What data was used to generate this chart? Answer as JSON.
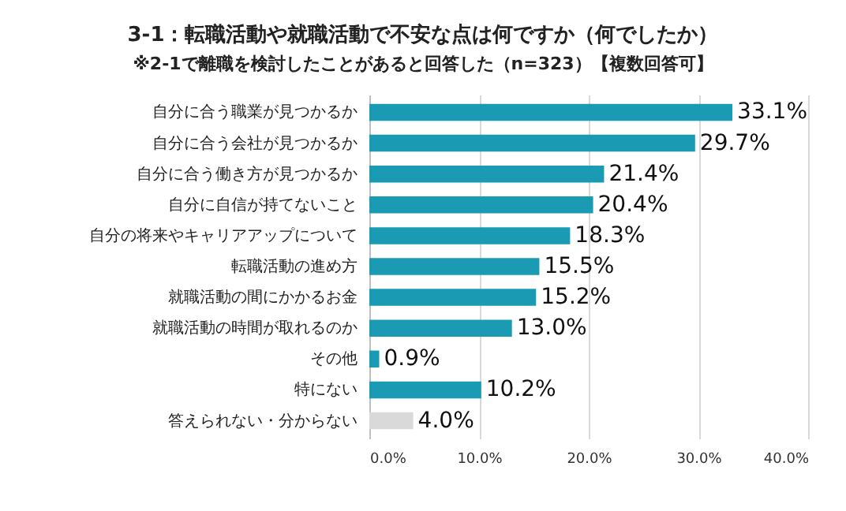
{
  "chart_data": {
    "type": "bar",
    "orientation": "horizontal",
    "title": "3-1：転職活動や就職活動で不安な点は何ですか（何でしたか）",
    "subtitle": "※2-1で離職を検討したことがあると回答した（n=323）【複数回答可】",
    "categories": [
      "自分に合う職業が見つかるか",
      "自分に合う会社が見つかるか",
      "自分に合う働き方が見つかるか",
      "自分に自信が持てないこと",
      "自分の将来やキャリアアップについて",
      "転職活動の進め方",
      "就職活動の間にかかるお金",
      "就職活動の時間が取れるのか",
      "その他",
      "特にない",
      "答えられない・分からない"
    ],
    "values": [
      33.1,
      29.7,
      21.4,
      20.4,
      18.3,
      15.5,
      15.2,
      13.0,
      0.9,
      10.2,
      4.0
    ],
    "value_labels": [
      "33.1%",
      "29.7%",
      "21.4%",
      "20.4%",
      "18.3%",
      "15.5%",
      "15.2%",
      "13.0%",
      "0.9%",
      "10.2%",
      "4.0%"
    ],
    "colors": [
      "#1a9bb3",
      "#1a9bb3",
      "#1a9bb3",
      "#1a9bb3",
      "#1a9bb3",
      "#1a9bb3",
      "#1a9bb3",
      "#1a9bb3",
      "#1a9bb3",
      "#1a9bb3",
      "#d9d9d9"
    ],
    "xlim": [
      0,
      40
    ],
    "xticks": [
      {
        "value": 0,
        "label": "0.0%"
      },
      {
        "value": 10,
        "label": "10.0%"
      },
      {
        "value": 20,
        "label": "20.0%"
      },
      {
        "value": 30,
        "label": "30.0%"
      },
      {
        "value": 40,
        "label": "40.0%"
      }
    ],
    "grid": "x"
  }
}
